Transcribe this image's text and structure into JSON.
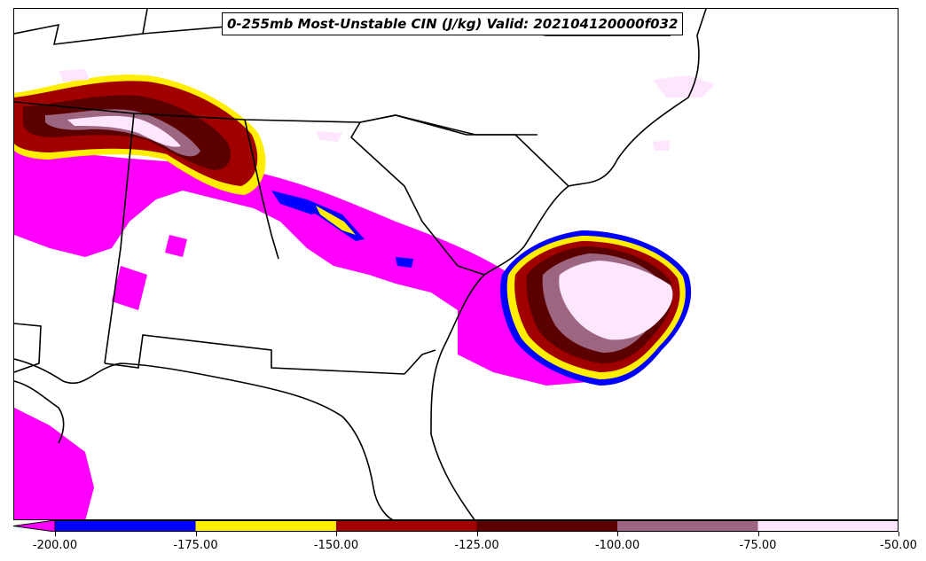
{
  "title": "0-255mb Most-Unstable CIN (J/kg) Valid: 202104120000f032",
  "colorbar": {
    "levels": [
      -200,
      -175,
      -150,
      -125,
      -100,
      -75,
      -50
    ],
    "tick_labels": [
      "-200.00",
      "-175.00",
      "-150.00",
      "-125.00",
      "-100.00",
      "-75.00",
      "-50.00"
    ],
    "colors": [
      "#0000ff",
      "#ffee00",
      "#a00000",
      "#5a0000",
      "#9c6680",
      "#ffe6ff"
    ],
    "extend_min_color": "#ff00ff"
  },
  "layers": {
    "field": "CIN shaded contours",
    "boundaries": "state and coastline outlines"
  }
}
